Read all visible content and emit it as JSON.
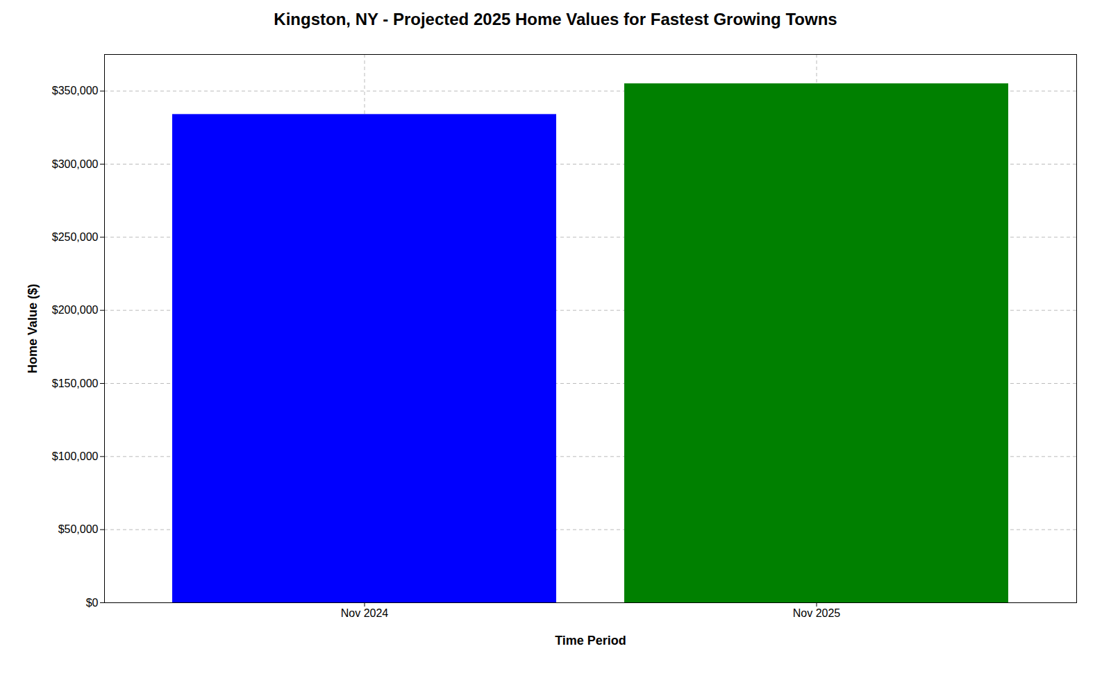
{
  "chart_data": {
    "type": "bar",
    "title": "Kingston, NY - Projected 2025 Home Values for Fastest Growing Towns",
    "categories": [
      "Nov 2024",
      "Nov 2025"
    ],
    "values": [
      334000,
      355000
    ],
    "colors": [
      "#0000ff",
      "#008000"
    ],
    "xlabel": "Time Period",
    "ylabel": "Home Value ($)",
    "ylim": [
      0,
      375000
    ],
    "yticks": [
      {
        "value": 0,
        "label": "$0"
      },
      {
        "value": 50000,
        "label": "$50,000"
      },
      {
        "value": 100000,
        "label": "$100,000"
      },
      {
        "value": 150000,
        "label": "$150,000"
      },
      {
        "value": 200000,
        "label": "$200,000"
      },
      {
        "value": 250000,
        "label": "$250,000"
      },
      {
        "value": 300000,
        "label": "$300,000"
      },
      {
        "value": 350000,
        "label": "$350,000"
      }
    ],
    "grid": true
  }
}
